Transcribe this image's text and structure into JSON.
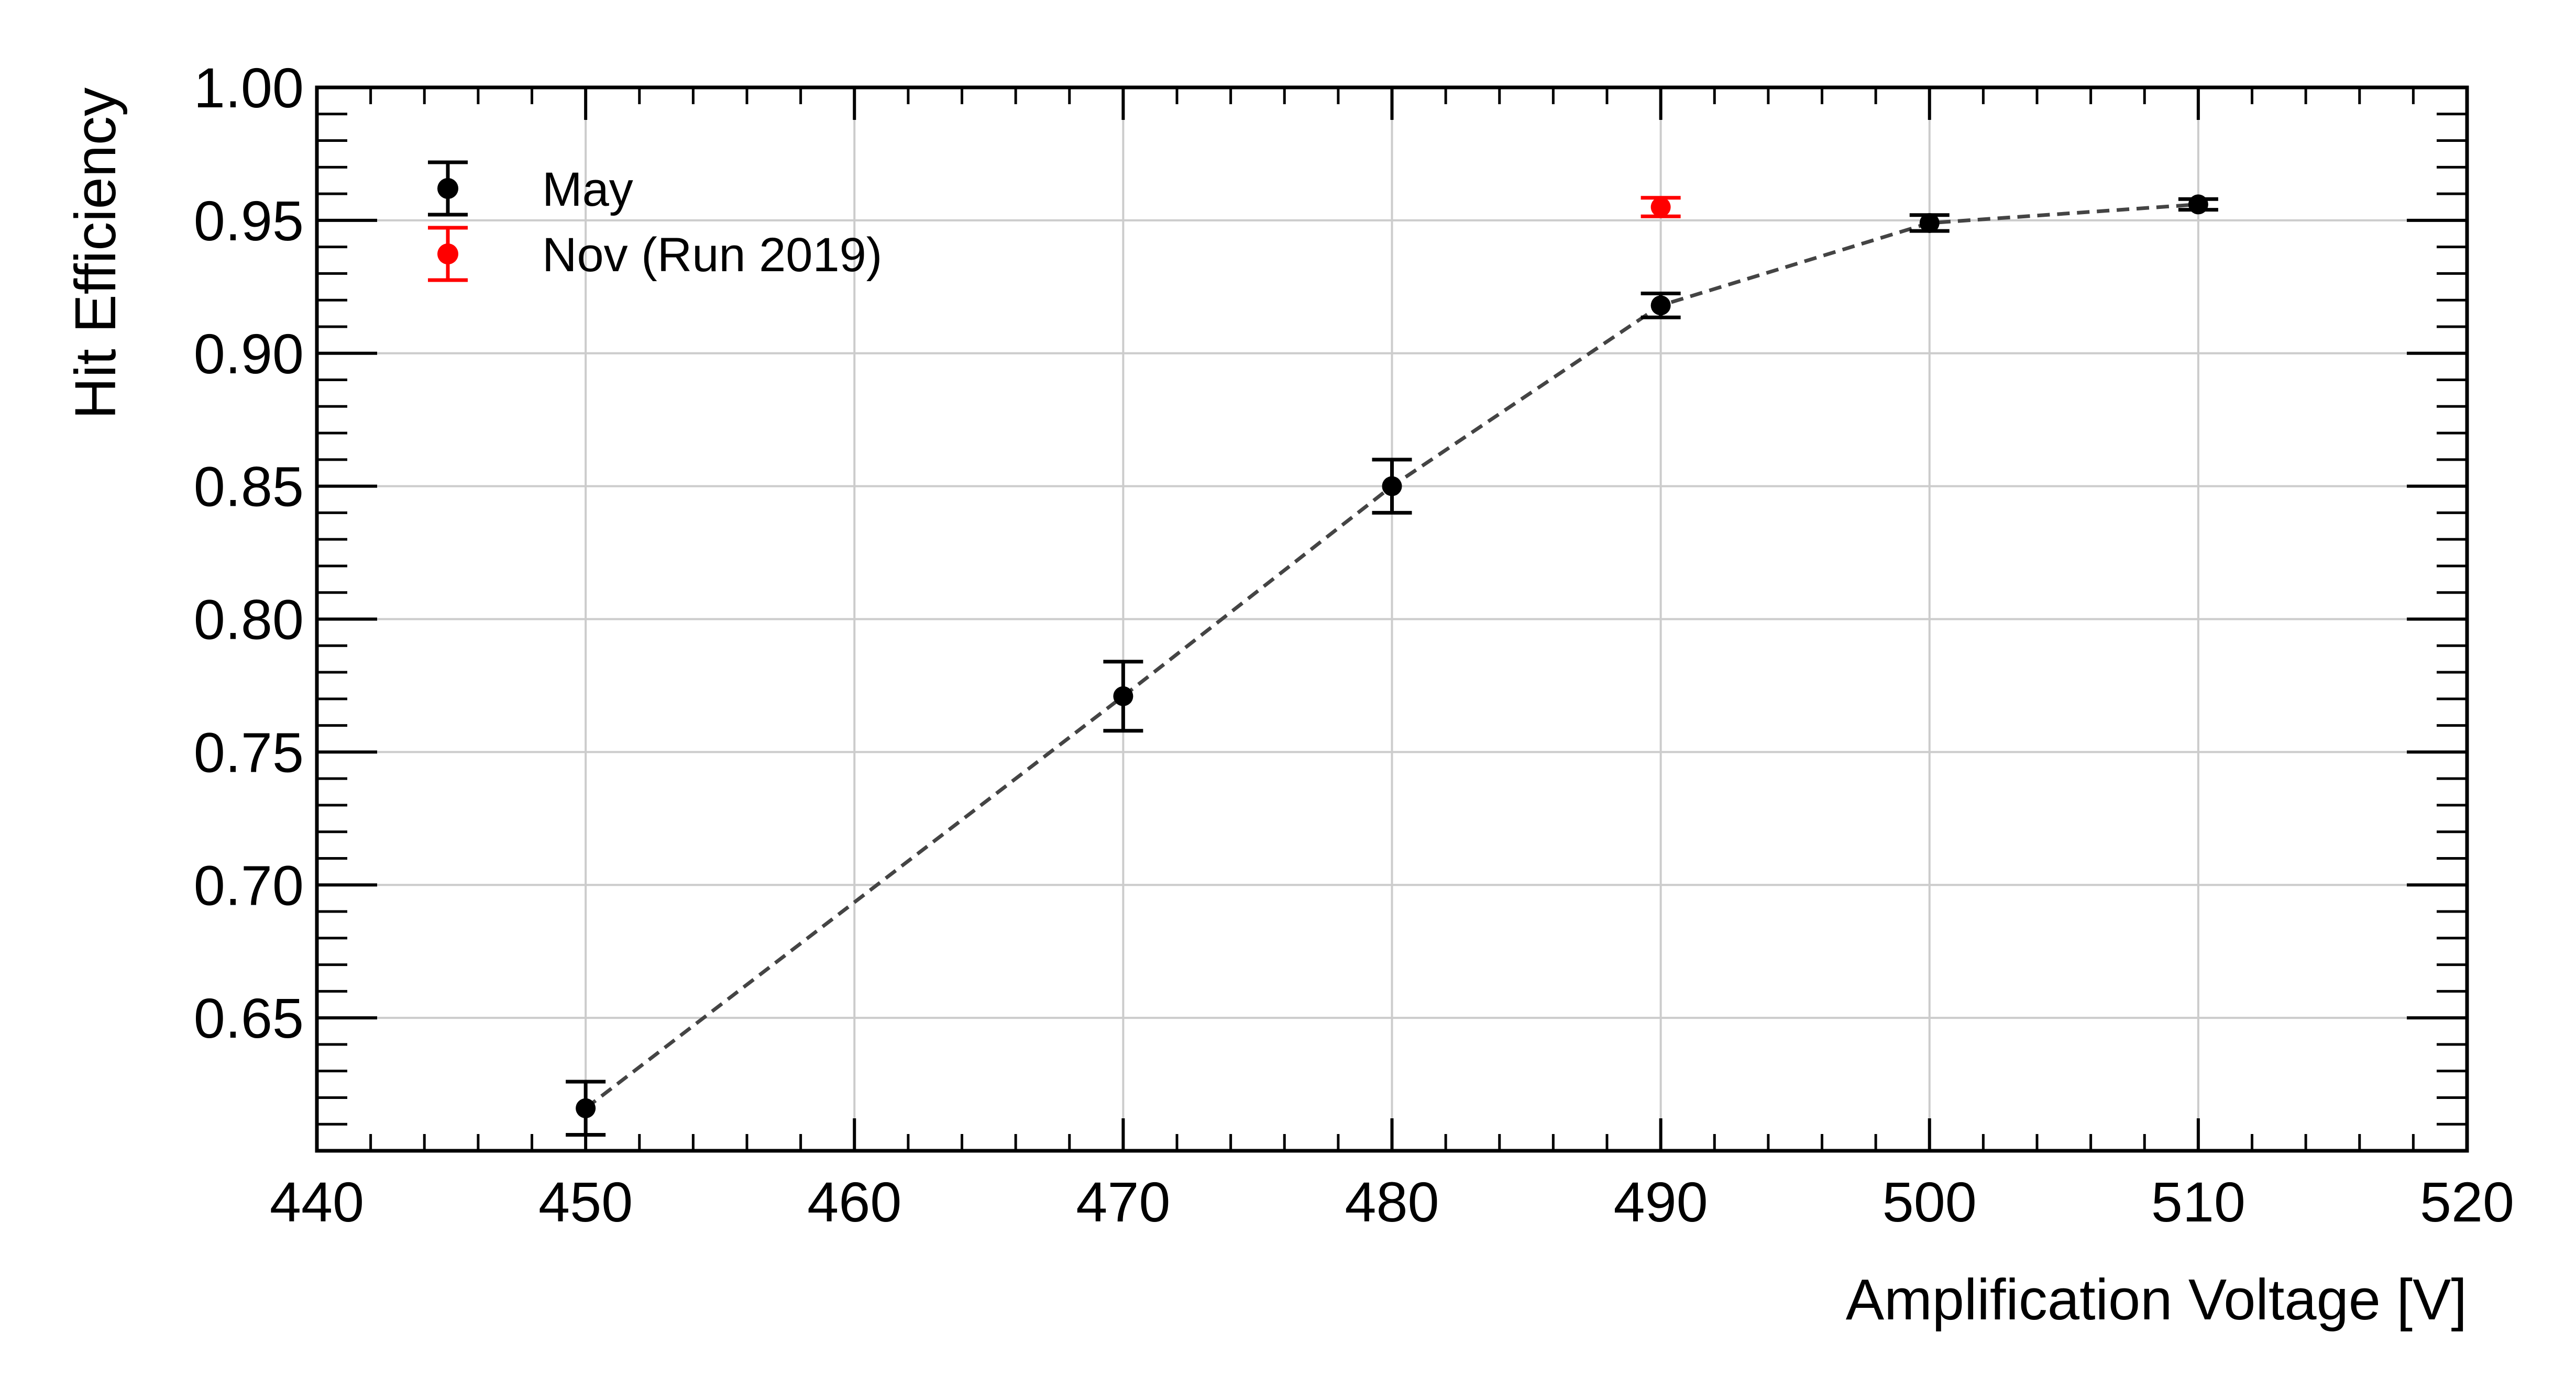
{
  "chart_data": {
    "type": "scatter",
    "xlabel": "Amplification Voltage [V]",
    "ylabel": "Hit Efficiency",
    "xlim": [
      440,
      520
    ],
    "ylim": [
      0.6,
      1.0
    ],
    "x_ticks": [
      440,
      450,
      460,
      470,
      480,
      490,
      500,
      510,
      520
    ],
    "x_tick_labels": [
      "440",
      "450",
      "460",
      "470",
      "480",
      "490",
      "500",
      "510",
      "520"
    ],
    "y_ticks": [
      0.65,
      0.7,
      0.75,
      0.8,
      0.85,
      0.9,
      0.95,
      1.0
    ],
    "y_tick_labels": [
      "0.65",
      "0.70",
      "0.75",
      "0.80",
      "0.85",
      "0.90",
      "0.95",
      "1.00"
    ],
    "grid": true,
    "legend_position": "top-left",
    "series": [
      {
        "name": "May",
        "color": "#000000",
        "connected": true,
        "line_style": "dashed",
        "line_color": "#444444",
        "points": [
          {
            "x": 450,
            "y": 0.616,
            "err": 0.01
          },
          {
            "x": 470,
            "y": 0.771,
            "err": 0.013
          },
          {
            "x": 480,
            "y": 0.85,
            "err": 0.01
          },
          {
            "x": 490,
            "y": 0.918,
            "err": 0.0045
          },
          {
            "x": 500,
            "y": 0.949,
            "err": 0.003
          },
          {
            "x": 510,
            "y": 0.956,
            "err": 0.002
          }
        ]
      },
      {
        "name": "Nov (Run 2019)",
        "color": "#ff0000",
        "connected": false,
        "points": [
          {
            "x": 490,
            "y": 0.955,
            "err": 0.0035
          }
        ]
      }
    ]
  }
}
